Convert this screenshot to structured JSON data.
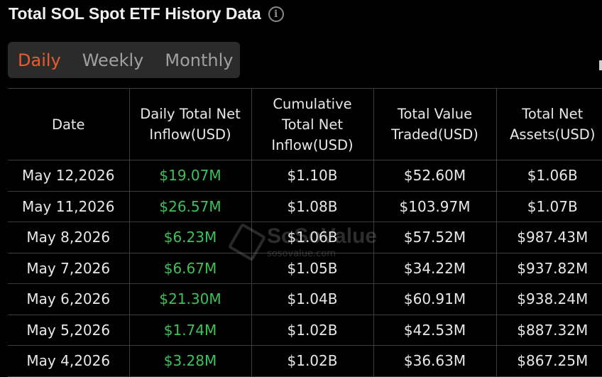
{
  "header": {
    "title": "Total SOL Spot ETF History Data",
    "info_icon": "info-icon"
  },
  "tabs": [
    {
      "label": "Daily",
      "active": true
    },
    {
      "label": "Weekly",
      "active": false
    },
    {
      "label": "Monthly",
      "active": false
    }
  ],
  "colors": {
    "active_tab": "#ef5a2d",
    "inflow_positive": "#3ec15a",
    "background": "#000000",
    "tab_bar": "#2b2b2b"
  },
  "table": {
    "columns": [
      "Date",
      "Daily Total Net Inflow(USD)",
      "Cumulative Total Net Inflow(USD)",
      "Total Value Traded(USD)",
      "Total Net Assets(USD)"
    ],
    "rows": [
      [
        "May 12,2026",
        "$19.07M",
        "$1.10B",
        "$52.60M",
        "$1.06B"
      ],
      [
        "May 11,2026",
        "$26.57M",
        "$1.08B",
        "$103.97M",
        "$1.07B"
      ],
      [
        "May 8,2026",
        "$6.23M",
        "$1.06B",
        "$57.52M",
        "$987.43M"
      ],
      [
        "May 7,2026",
        "$6.67M",
        "$1.05B",
        "$34.22M",
        "$937.82M"
      ],
      [
        "May 6,2026",
        "$21.30M",
        "$1.04B",
        "$60.91M",
        "$938.24M"
      ],
      [
        "May 5,2026",
        "$1.74M",
        "$1.02B",
        "$42.53M",
        "$887.32M"
      ],
      [
        "May 4,2026",
        "$3.28M",
        "$1.02B",
        "$36.63M",
        "$867.25M"
      ]
    ]
  },
  "watermark": {
    "brand": "SoSoValue",
    "site": "sosovalue.com"
  }
}
